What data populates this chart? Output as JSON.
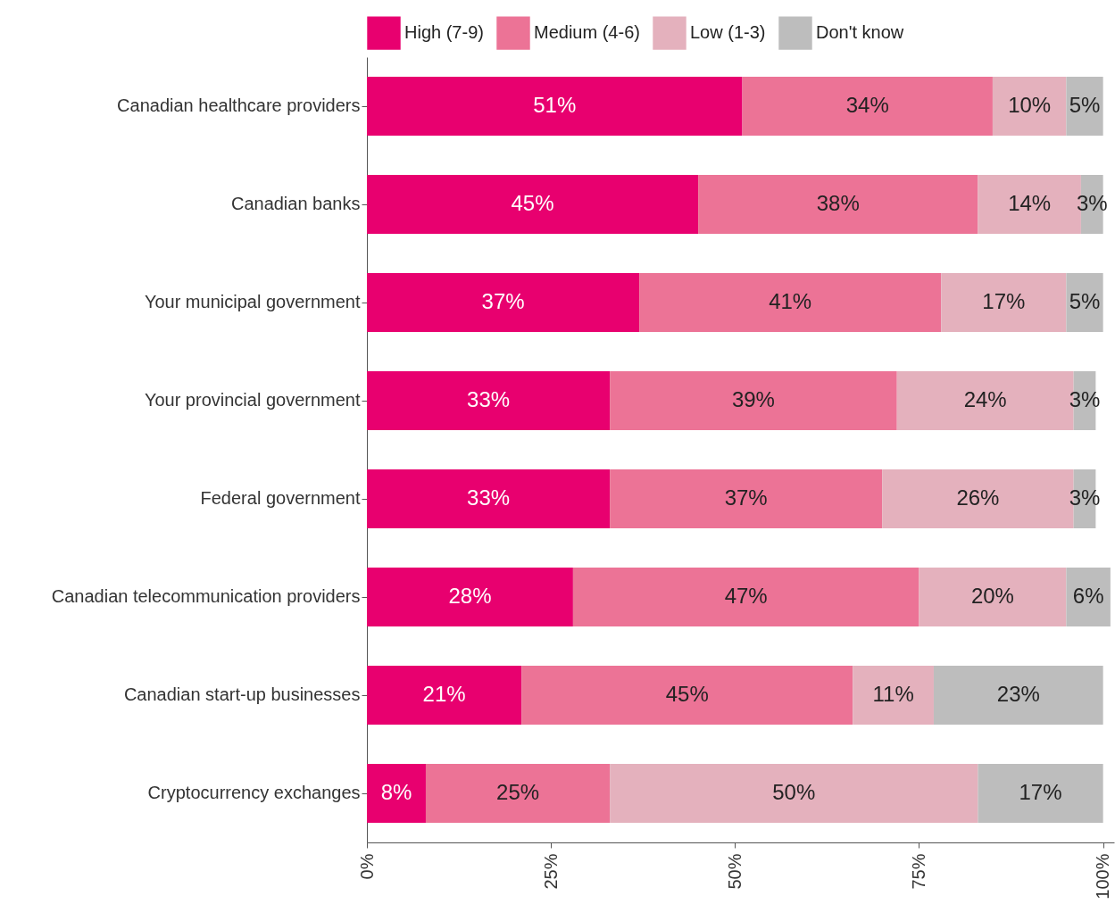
{
  "chart_data": {
    "type": "bar",
    "orientation": "horizontal",
    "stacked": true,
    "legend": "top",
    "grid": false,
    "categories": [
      "Canadian healthcare providers",
      "Canadian banks",
      "Your municipal government",
      "Your provincial government",
      "Federal government",
      "Canadian telecommunication providers",
      "Canadian start-up businesses",
      "Cryptocurrency exchanges"
    ],
    "series": [
      {
        "name": "High (7-9)",
        "color": "#e8006f",
        "values": [
          51,
          45,
          37,
          33,
          33,
          28,
          21,
          8
        ],
        "value_labels": [
          "51%",
          "45%",
          "37%",
          "33%",
          "33%",
          "28%",
          "21%",
          "8%"
        ]
      },
      {
        "name": "Medium (4-6)",
        "color": "#ec7396",
        "values": [
          34,
          38,
          41,
          39,
          37,
          47,
          45,
          25
        ],
        "value_labels": [
          "34%",
          "38%",
          "41%",
          "39%",
          "37%",
          "47%",
          "45%",
          "25%"
        ]
      },
      {
        "name": "Low (1-3)",
        "color": "#e4b1bd",
        "values": [
          10,
          14,
          17,
          24,
          26,
          20,
          11,
          50
        ],
        "value_labels": [
          "10%",
          "14%",
          "17%",
          "24%",
          "26%",
          "20%",
          "11%",
          "50%"
        ]
      },
      {
        "name": "Don't know",
        "color": "#bdbdbd",
        "values": [
          5,
          3,
          5,
          3,
          3,
          6,
          23,
          17
        ],
        "value_labels": [
          "5%",
          "3%",
          "5%",
          "3%",
          "3%",
          "6%",
          "23%",
          "17%"
        ]
      }
    ],
    "xlim": [
      0,
      101.5
    ],
    "xticks": [
      {
        "value": 0,
        "label": "0%"
      },
      {
        "value": 25,
        "label": "25%"
      },
      {
        "value": 50,
        "label": "50%"
      },
      {
        "value": 75,
        "label": "75%"
      },
      {
        "value": 100,
        "label": "100%"
      }
    ]
  }
}
